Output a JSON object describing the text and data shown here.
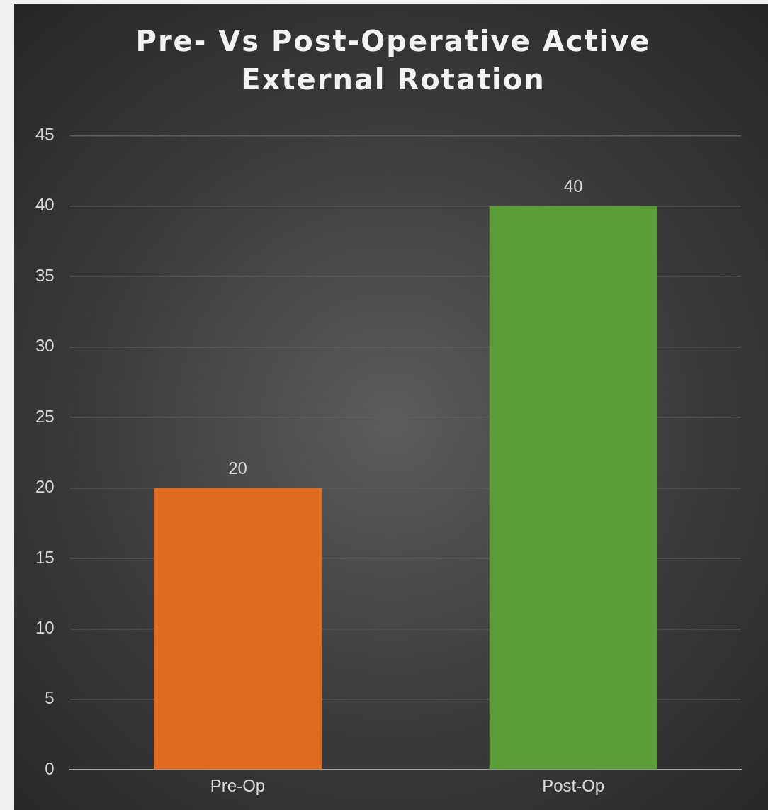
{
  "chart_data": {
    "type": "bar",
    "title": "Pre- Vs Post-Operative Active External Rotation",
    "categories": [
      "Pre-Op",
      "Post-Op"
    ],
    "values": [
      20,
      40
    ],
    "colors": [
      "#e06a20",
      "#5a9c36"
    ],
    "ylim": [
      0,
      45
    ],
    "yticks": [
      0,
      5,
      10,
      15,
      20,
      25,
      30,
      35,
      40,
      45
    ],
    "grid": "y",
    "data_labels": true,
    "legend": false
  }
}
